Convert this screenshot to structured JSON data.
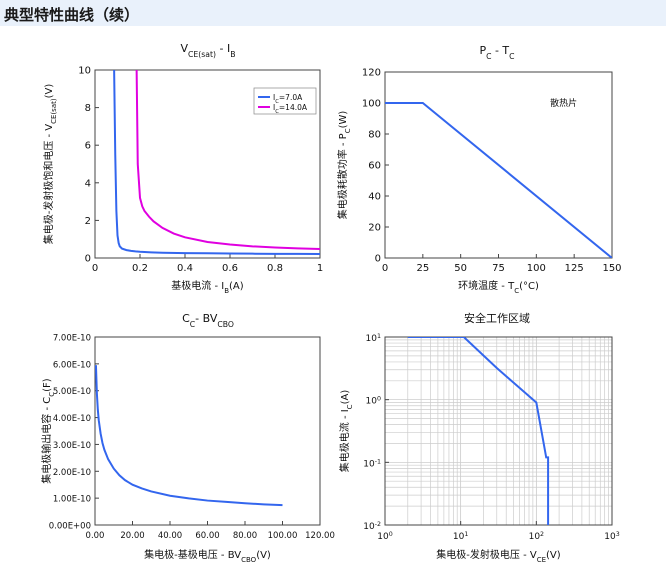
{
  "header": {
    "title": "典型特性曲线（续）"
  },
  "charts": [
    {
      "type": "line",
      "title_parts": [
        {
          "text": "V",
          "sub": false
        },
        {
          "text": "CE(sat)",
          "sub": true
        },
        {
          "text": " - I",
          "sub": false
        },
        {
          "text": "B",
          "sub": true
        }
      ],
      "ylabel_parts": [
        {
          "text": "集电极-发射极饱和电压 - V",
          "sub": false
        },
        {
          "text": "CE(sat)",
          "sub": true
        },
        {
          "text": "(V)",
          "sub": false
        }
      ],
      "xlabel_parts": [
        {
          "text": "基极电流 - I",
          "sub": false
        },
        {
          "text": "B",
          "sub": true
        },
        {
          "text": "(A)",
          "sub": false
        }
      ],
      "xlim": [
        0,
        1
      ],
      "ylim": [
        0,
        10
      ],
      "log": false,
      "xticks": [
        0,
        0.2,
        0.4,
        0.6,
        0.8,
        1
      ],
      "xtick_labels": [
        "0",
        "0.2",
        "0.4",
        "0.6",
        "0.8",
        "1"
      ],
      "yticks": [
        0,
        2,
        4,
        6,
        8,
        10
      ],
      "ytick_labels": [
        "0",
        "2",
        "4",
        "6",
        "8",
        "10"
      ],
      "grid": false,
      "legend": {
        "position": "top-right"
      },
      "series": [
        {
          "name_parts": [
            {
              "text": "I",
              "sub": false
            },
            {
              "text": "C",
              "sub": true
            },
            {
              "text": "=7.0A",
              "sub": false
            }
          ],
          "color": "#3366ee",
          "x": [
            0.085,
            0.09,
            0.095,
            0.1,
            0.105,
            0.11,
            0.12,
            0.14,
            0.16,
            0.18,
            0.2,
            0.25,
            0.3,
            0.4,
            0.5,
            0.6,
            0.7,
            0.8,
            0.9,
            1.0
          ],
          "y": [
            10,
            5.5,
            2.5,
            1.2,
            0.8,
            0.62,
            0.5,
            0.42,
            0.38,
            0.35,
            0.33,
            0.3,
            0.28,
            0.26,
            0.25,
            0.24,
            0.23,
            0.22,
            0.22,
            0.21
          ]
        },
        {
          "name_parts": [
            {
              "text": "I",
              "sub": false
            },
            {
              "text": "C",
              "sub": true
            },
            {
              "text": "=14.0A",
              "sub": false
            }
          ],
          "color": "#e000e0",
          "x": [
            0.185,
            0.19,
            0.2,
            0.21,
            0.22,
            0.24,
            0.26,
            0.3,
            0.35,
            0.4,
            0.5,
            0.6,
            0.7,
            0.8,
            0.9,
            1.0
          ],
          "y": [
            10,
            5.0,
            3.2,
            2.75,
            2.5,
            2.2,
            1.95,
            1.6,
            1.3,
            1.1,
            0.85,
            0.72,
            0.62,
            0.56,
            0.51,
            0.48
          ]
        }
      ]
    },
    {
      "type": "line",
      "title_parts": [
        {
          "text": "P",
          "sub": false
        },
        {
          "text": "C",
          "sub": true
        },
        {
          "text": " - T",
          "sub": false
        },
        {
          "text": "C",
          "sub": true
        }
      ],
      "ylabel_parts": [
        {
          "text": "集电极耗散功率 - P",
          "sub": false
        },
        {
          "text": "C",
          "sub": true
        },
        {
          "text": "(W)",
          "sub": false
        }
      ],
      "xlabel_parts": [
        {
          "text": "环境温度 - T",
          "sub": false
        },
        {
          "text": "C",
          "sub": true
        },
        {
          "text": "(°C)",
          "sub": false
        }
      ],
      "xlim": [
        0,
        150
      ],
      "ylim": [
        0,
        120
      ],
      "log": false,
      "xticks": [
        0,
        25,
        50,
        75,
        100,
        125,
        150
      ],
      "xtick_labels": [
        "0",
        "25",
        "50",
        "75",
        "100",
        "125",
        "150"
      ],
      "yticks": [
        0,
        20,
        40,
        60,
        80,
        100,
        120
      ],
      "ytick_labels": [
        "0",
        "20",
        "40",
        "60",
        "80",
        "100",
        "120"
      ],
      "grid": false,
      "annotation": {
        "text": "散热片",
        "x": 118,
        "y": 100
      },
      "series": [
        {
          "color": "#3366ee",
          "x": [
            0,
            25,
            150
          ],
          "y": [
            100,
            100,
            0
          ]
        }
      ]
    },
    {
      "type": "line",
      "title_parts": [
        {
          "text": "C",
          "sub": false
        },
        {
          "text": "C",
          "sub": true
        },
        {
          "text": "- BV",
          "sub": false
        },
        {
          "text": "CBO",
          "sub": true
        }
      ],
      "ylabel_parts": [
        {
          "text": "集电极输出电容 - C",
          "sub": false
        },
        {
          "text": "C",
          "sub": true
        },
        {
          "text": "(F)",
          "sub": false
        }
      ],
      "xlabel_parts": [
        {
          "text": "集电极-基极电压 - BV",
          "sub": false
        },
        {
          "text": "CBO",
          "sub": true
        },
        {
          "text": "(V)",
          "sub": false
        }
      ],
      "xlim": [
        0,
        120
      ],
      "ylim": [
        0,
        7e-10
      ],
      "log": false,
      "xticks": [
        0,
        20,
        40,
        60,
        80,
        100,
        120
      ],
      "xtick_labels": [
        "0.00",
        "20.00",
        "40.00",
        "60.00",
        "80.00",
        "100.00",
        "120.00"
      ],
      "yticks": [
        0,
        1e-10,
        2e-10,
        3e-10,
        4e-10,
        5e-10,
        6e-10,
        7e-10
      ],
      "ytick_labels": [
        "0.00E+00",
        "1.00E-10",
        "2.00E-10",
        "3.00E-10",
        "4.00E-10",
        "5.00E-10",
        "6.00E-10",
        "7.00E-10"
      ],
      "grid": false,
      "series": [
        {
          "color": "#3366ee",
          "x": [
            0.5,
            1,
            1.5,
            2,
            3,
            4,
            5,
            7,
            10,
            13,
            16,
            20,
            25,
            30,
            40,
            50,
            60,
            70,
            80,
            90,
            100
          ],
          "y": [
            5.95e-10,
            4.9e-10,
            4.3e-10,
            3.9e-10,
            3.4e-10,
            3.05e-10,
            2.8e-10,
            2.45e-10,
            2.1e-10,
            1.85e-10,
            1.67e-10,
            1.5e-10,
            1.36e-10,
            1.25e-10,
            1.09e-10,
            9.9e-11,
            9.1e-11,
            8.6e-11,
            8.1e-11,
            7.7e-11,
            7.4e-11
          ]
        }
      ]
    },
    {
      "type": "line",
      "title_parts": [
        {
          "text": "安全工作区域",
          "sub": false
        }
      ],
      "ylabel_parts": [
        {
          "text": "集电极电流 - I",
          "sub": false
        },
        {
          "text": "C",
          "sub": true
        },
        {
          "text": "(A)",
          "sub": false
        }
      ],
      "xlabel_parts": [
        {
          "text": "集电极-发射极电压 - V",
          "sub": false
        },
        {
          "text": "CE",
          "sub": true
        },
        {
          "text": "(V)",
          "sub": false
        }
      ],
      "xlim": [
        1,
        1000
      ],
      "ylim": [
        0.01,
        10
      ],
      "log": true,
      "xticks": [
        1,
        10,
        100,
        1000
      ],
      "xtick_labels": [
        [
          "10",
          "0"
        ],
        [
          "10",
          "1"
        ],
        [
          "10",
          "2"
        ],
        [
          "10",
          "3"
        ]
      ],
      "yticks": [
        0.01,
        0.1,
        1,
        10
      ],
      "ytick_labels": [
        [
          "10",
          "-2"
        ],
        [
          "10",
          "-1"
        ],
        [
          "10",
          "0"
        ],
        [
          "10",
          "1"
        ]
      ],
      "grid": true,
      "series": [
        {
          "color": "#3366ee",
          "x": [
            2,
            11,
            30,
            100,
            135,
            143,
            143
          ],
          "y": [
            10,
            10,
            3.2,
            0.9,
            0.12,
            0.12,
            0.01
          ]
        }
      ]
    }
  ]
}
